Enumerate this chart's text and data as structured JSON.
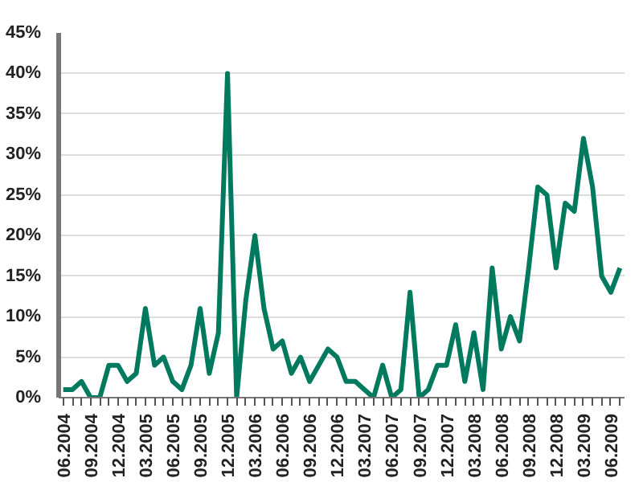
{
  "chart_data": {
    "type": "line",
    "categories": [
      "06.2004",
      null,
      null,
      "09.2004",
      null,
      null,
      "12.2004",
      null,
      null,
      "03.2005",
      null,
      null,
      "06.2005",
      null,
      null,
      "09.2005",
      null,
      null,
      "12.2005",
      null,
      null,
      "03.2006",
      null,
      null,
      "06.2006",
      null,
      null,
      "09.2006",
      null,
      null,
      "12.2006",
      null,
      null,
      "03.2007",
      null,
      null,
      "06.2007",
      null,
      null,
      "09.2007",
      null,
      null,
      "12.2007",
      null,
      null,
      "03.2008",
      null,
      null,
      "06.2008",
      null,
      null,
      "09.2008",
      null,
      null,
      "12.2008",
      null,
      null,
      "03.2009",
      null,
      null,
      "06.2009",
      null
    ],
    "series": [
      {
        "color": "#007a5e",
        "values": [
          1,
          1,
          2,
          0,
          0,
          4,
          4,
          2,
          3,
          11,
          4,
          5,
          2,
          1,
          4,
          11,
          3,
          8,
          40,
          0,
          12,
          20,
          11,
          6,
          7,
          3,
          5,
          2,
          4,
          6,
          5,
          2,
          2,
          1,
          0,
          4,
          0,
          1,
          13,
          0,
          1,
          4,
          4,
          9,
          2,
          8,
          1,
          16,
          6,
          10,
          7,
          16,
          26,
          25,
          16,
          24,
          23,
          32,
          26,
          15,
          13,
          16
        ]
      }
    ],
    "ylim": [
      0,
      45
    ],
    "yticks": [
      {
        "value": 0,
        "label": "0%"
      },
      {
        "value": 5,
        "label": "5%"
      },
      {
        "value": 10,
        "label": "10%"
      },
      {
        "value": 15,
        "label": "15%"
      },
      {
        "value": 20,
        "label": "20%"
      },
      {
        "value": 25,
        "label": "25%"
      },
      {
        "value": 30,
        "label": "30%"
      },
      {
        "value": 35,
        "label": "35%"
      },
      {
        "value": 40,
        "label": "40%"
      },
      {
        "value": 45,
        "label": "45%"
      }
    ],
    "grid": "y",
    "marker": "none",
    "line_style": "solid"
  }
}
